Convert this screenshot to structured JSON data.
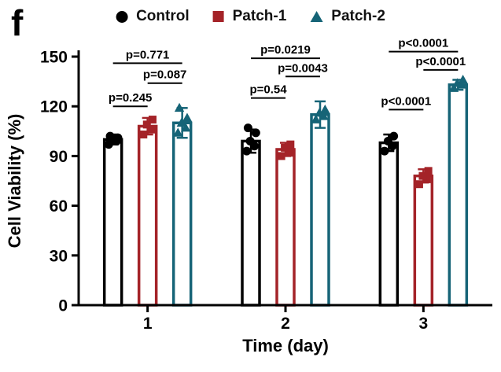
{
  "panel_label": "f",
  "legend": [
    {
      "label": "Control",
      "marker": "circle",
      "color": "#000000"
    },
    {
      "label": "Patch-1",
      "marker": "square",
      "color": "#A42328"
    },
    {
      "label": "Patch-2",
      "marker": "triangle",
      "color": "#166477"
    }
  ],
  "chart_data": {
    "type": "bar",
    "title": "",
    "xlabel": "Time (day)",
    "ylabel": "Cell Viability (%)",
    "ylim": [
      0,
      150
    ],
    "yticks": [
      0,
      30,
      60,
      90,
      120,
      150
    ],
    "categories": [
      "1",
      "2",
      "3"
    ],
    "bar_style": {
      "fill": "#ffffff",
      "outline_width": 3.5
    },
    "series": [
      {
        "name": "Control",
        "marker": "circle",
        "color": "#000000",
        "values": [
          100,
          99,
          98
        ],
        "errors": [
          3,
          7,
          5
        ],
        "points": [
          [
            97,
            99,
            100,
            101,
            102
          ],
          [
            93,
            96,
            99,
            104,
            107
          ],
          [
            93,
            96,
            99,
            102
          ]
        ]
      },
      {
        "name": "Patch-1",
        "marker": "square",
        "color": "#A42328",
        "values": [
          108,
          94,
          78
        ],
        "errors": [
          5,
          4,
          4
        ],
        "points": [
          [
            103,
            106,
            109,
            112
          ],
          [
            90,
            92,
            95,
            97
          ],
          [
            73,
            76,
            78,
            81
          ]
        ]
      },
      {
        "name": "Patch-2",
        "marker": "triangle",
        "color": "#166477",
        "values": [
          110,
          115,
          133
        ],
        "errors": [
          9,
          8,
          3
        ],
        "points": [
          [
            104,
            107,
            110,
            113,
            119
          ],
          [
            112,
            114,
            116,
            118
          ],
          [
            131,
            133,
            134,
            136
          ]
        ]
      }
    ],
    "significance": [
      {
        "group": 0,
        "from": 0,
        "to": 1,
        "label": "p=0.245",
        "y": 120
      },
      {
        "group": 0,
        "from": 0,
        "to": 2,
        "label": "p=0.771",
        "y": 146
      },
      {
        "group": 0,
        "from": 1,
        "to": 2,
        "label": "p=0.087",
        "y": 134
      },
      {
        "group": 1,
        "from": 0,
        "to": 1,
        "label": "p=0.54",
        "y": 125
      },
      {
        "group": 1,
        "from": 0,
        "to": 2,
        "label": "p=0.0219",
        "y": 149
      },
      {
        "group": 1,
        "from": 1,
        "to": 2,
        "label": "p=0.0043",
        "y": 138
      },
      {
        "group": 2,
        "from": 0,
        "to": 1,
        "label": "p<0.0001",
        "y": 118
      },
      {
        "group": 2,
        "from": 0,
        "to": 2,
        "label": "p<0.0001",
        "y": 153
      },
      {
        "group": 2,
        "from": 1,
        "to": 2,
        "label": "p<0.0001",
        "y": 142
      }
    ]
  }
}
